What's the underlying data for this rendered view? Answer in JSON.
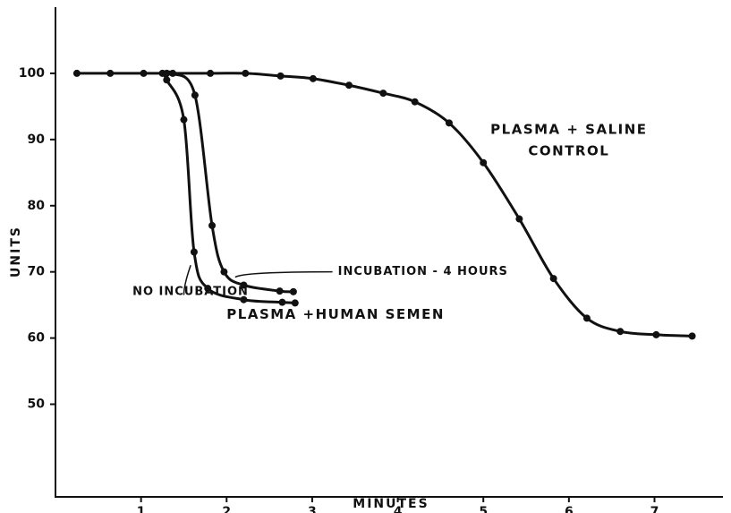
{
  "chart_data": {
    "type": "line",
    "xlabel": "MINUTES",
    "ylabel": "UNITS",
    "xlim": [
      0,
      7.8
    ],
    "ylim": [
      36,
      110
    ],
    "xticks": [
      1,
      2,
      3,
      4,
      5,
      6,
      7
    ],
    "yticks": [
      50,
      60,
      70,
      80,
      90,
      100
    ],
    "color": "#111111",
    "series": [
      {
        "x": [
          0.25,
          0.64,
          1.03,
          1.81,
          2.22,
          2.63,
          3.01,
          3.43,
          3.83,
          4.2,
          4.6,
          5.0,
          5.42,
          5.82,
          6.21,
          6.6,
          7.02,
          7.44
        ],
        "values": [
          100,
          100,
          100,
          100,
          100,
          99.6,
          99.2,
          98.2,
          97,
          95.7,
          92.5,
          86.5,
          78,
          69,
          63,
          61,
          60.5,
          60.3
        ]
      },
      {
        "x": [
          1.25,
          1.3,
          1.5,
          1.62,
          1.78,
          2.2,
          2.65,
          2.8
        ],
        "values": [
          100,
          99,
          93,
          73,
          67.5,
          65.8,
          65.4,
          65.3
        ]
      },
      {
        "x": [
          1.3,
          1.37,
          1.63,
          1.83,
          1.97,
          2.2,
          2.62,
          2.78
        ],
        "values": [
          100,
          100,
          96.7,
          77,
          70,
          68,
          67.1,
          67
        ]
      }
    ],
    "annotations": [
      {
        "text": "PLASMA + SALINE",
        "x": 6.0,
        "y": 91.5
      },
      {
        "text": "CONTROL",
        "x": 6.0,
        "y": 88.2
      },
      {
        "text": "INCUBATION - 4 HOURS",
        "x": 3.3,
        "y": 70.0
      },
      {
        "text": "NO INCUBATION",
        "x": 0.9,
        "y": 67.0
      },
      {
        "text": "PLASMA +HUMAN SEMEN",
        "x": 2.0,
        "y": 63.5
      }
    ]
  }
}
